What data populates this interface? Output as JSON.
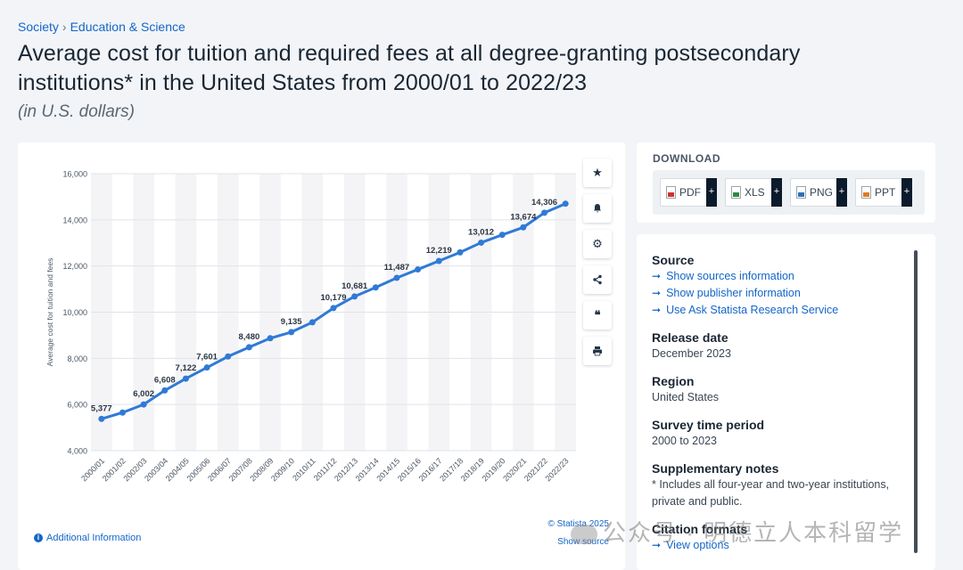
{
  "breadcrumb": {
    "item1": "Society",
    "separator": "›",
    "item2": "Education & Science"
  },
  "title": "Average cost for tuition and required fees at all degree-granting postsecondary institutions* in the United States from 2000/01 to 2022/23",
  "subtitle": "(in U.S. dollars)",
  "toolbar": [
    "star-icon",
    "bell-icon",
    "gear-icon",
    "share-icon",
    "quote-icon",
    "print-icon"
  ],
  "chart_footer": {
    "additional_info": "Additional Information",
    "copyright": "© Statista 2025",
    "show_source": "Show source"
  },
  "download": {
    "title": "DOWNLOAD",
    "buttons": [
      {
        "label": "PDF",
        "icon": "pdf-file-icon"
      },
      {
        "label": "XLS",
        "icon": "xls-file-icon"
      },
      {
        "label": "PNG",
        "icon": "png-file-icon"
      },
      {
        "label": "PPT",
        "icon": "ppt-file-icon"
      }
    ],
    "plus": "+"
  },
  "info": {
    "source_head": "Source",
    "source_links": [
      "Show sources information",
      "Show publisher information",
      "Use Ask Statista Research Service"
    ],
    "release_head": "Release date",
    "release_val": "December 2023",
    "region_head": "Region",
    "region_val": "United States",
    "survey_head": "Survey time period",
    "survey_val": "2000 to 2023",
    "notes_head": "Supplementary notes",
    "notes_val": "* Includes all four-year and two-year institutions, private and public.",
    "citation_head": "Citation formats",
    "citation_link": "View options"
  },
  "watermark": "公众号 · 明德立人本科留学",
  "colors": {
    "accent": "#1466c8",
    "line": "#2f7ad6",
    "card": "#ffffff",
    "background": "#f2f4f7"
  },
  "chart_data": {
    "type": "line",
    "title": "",
    "xlabel": "",
    "ylabel": "Average cost for tuition and fees",
    "ylim": [
      4000,
      16000
    ],
    "yticks": [
      4000,
      6000,
      8000,
      10000,
      12000,
      14000,
      16000
    ],
    "ytick_labels": [
      "4,000",
      "6,000",
      "8,000",
      "10,000",
      "12,000",
      "14,000",
      "16,000"
    ],
    "grid": true,
    "categories": [
      "2000/01",
      "2001/02",
      "2002/03",
      "2003/04",
      "2004/05",
      "2005/06",
      "2006/07",
      "2007/08",
      "2008/09",
      "2009/10",
      "2010/11",
      "2011/12",
      "2012/13",
      "2013/14",
      "2014/15",
      "2015/16",
      "2016/17",
      "2017/18",
      "2018/19",
      "2019/20",
      "2020/21",
      "2021/22",
      "2022/23"
    ],
    "values": [
      5377,
      5650,
      6002,
      6608,
      7122,
      7601,
      8080,
      8480,
      8870,
      9135,
      9560,
      10179,
      10681,
      11070,
      11487,
      11850,
      12219,
      12590,
      13012,
      13350,
      13674,
      14306,
      14700
    ],
    "labeled_points": [
      {
        "index": 0,
        "label": "5,377"
      },
      {
        "index": 2,
        "label": "6,002"
      },
      {
        "index": 3,
        "label": "6,608"
      },
      {
        "index": 4,
        "label": "7,122"
      },
      {
        "index": 5,
        "label": "7,601"
      },
      {
        "index": 7,
        "label": "8,480"
      },
      {
        "index": 9,
        "label": "9,135"
      },
      {
        "index": 11,
        "label": "10,179"
      },
      {
        "index": 12,
        "label": "10,681"
      },
      {
        "index": 14,
        "label": "11,487"
      },
      {
        "index": 16,
        "label": "12,219"
      },
      {
        "index": 18,
        "label": "13,012"
      },
      {
        "index": 20,
        "label": "13,674"
      },
      {
        "index": 21,
        "label": "14,306"
      }
    ]
  }
}
